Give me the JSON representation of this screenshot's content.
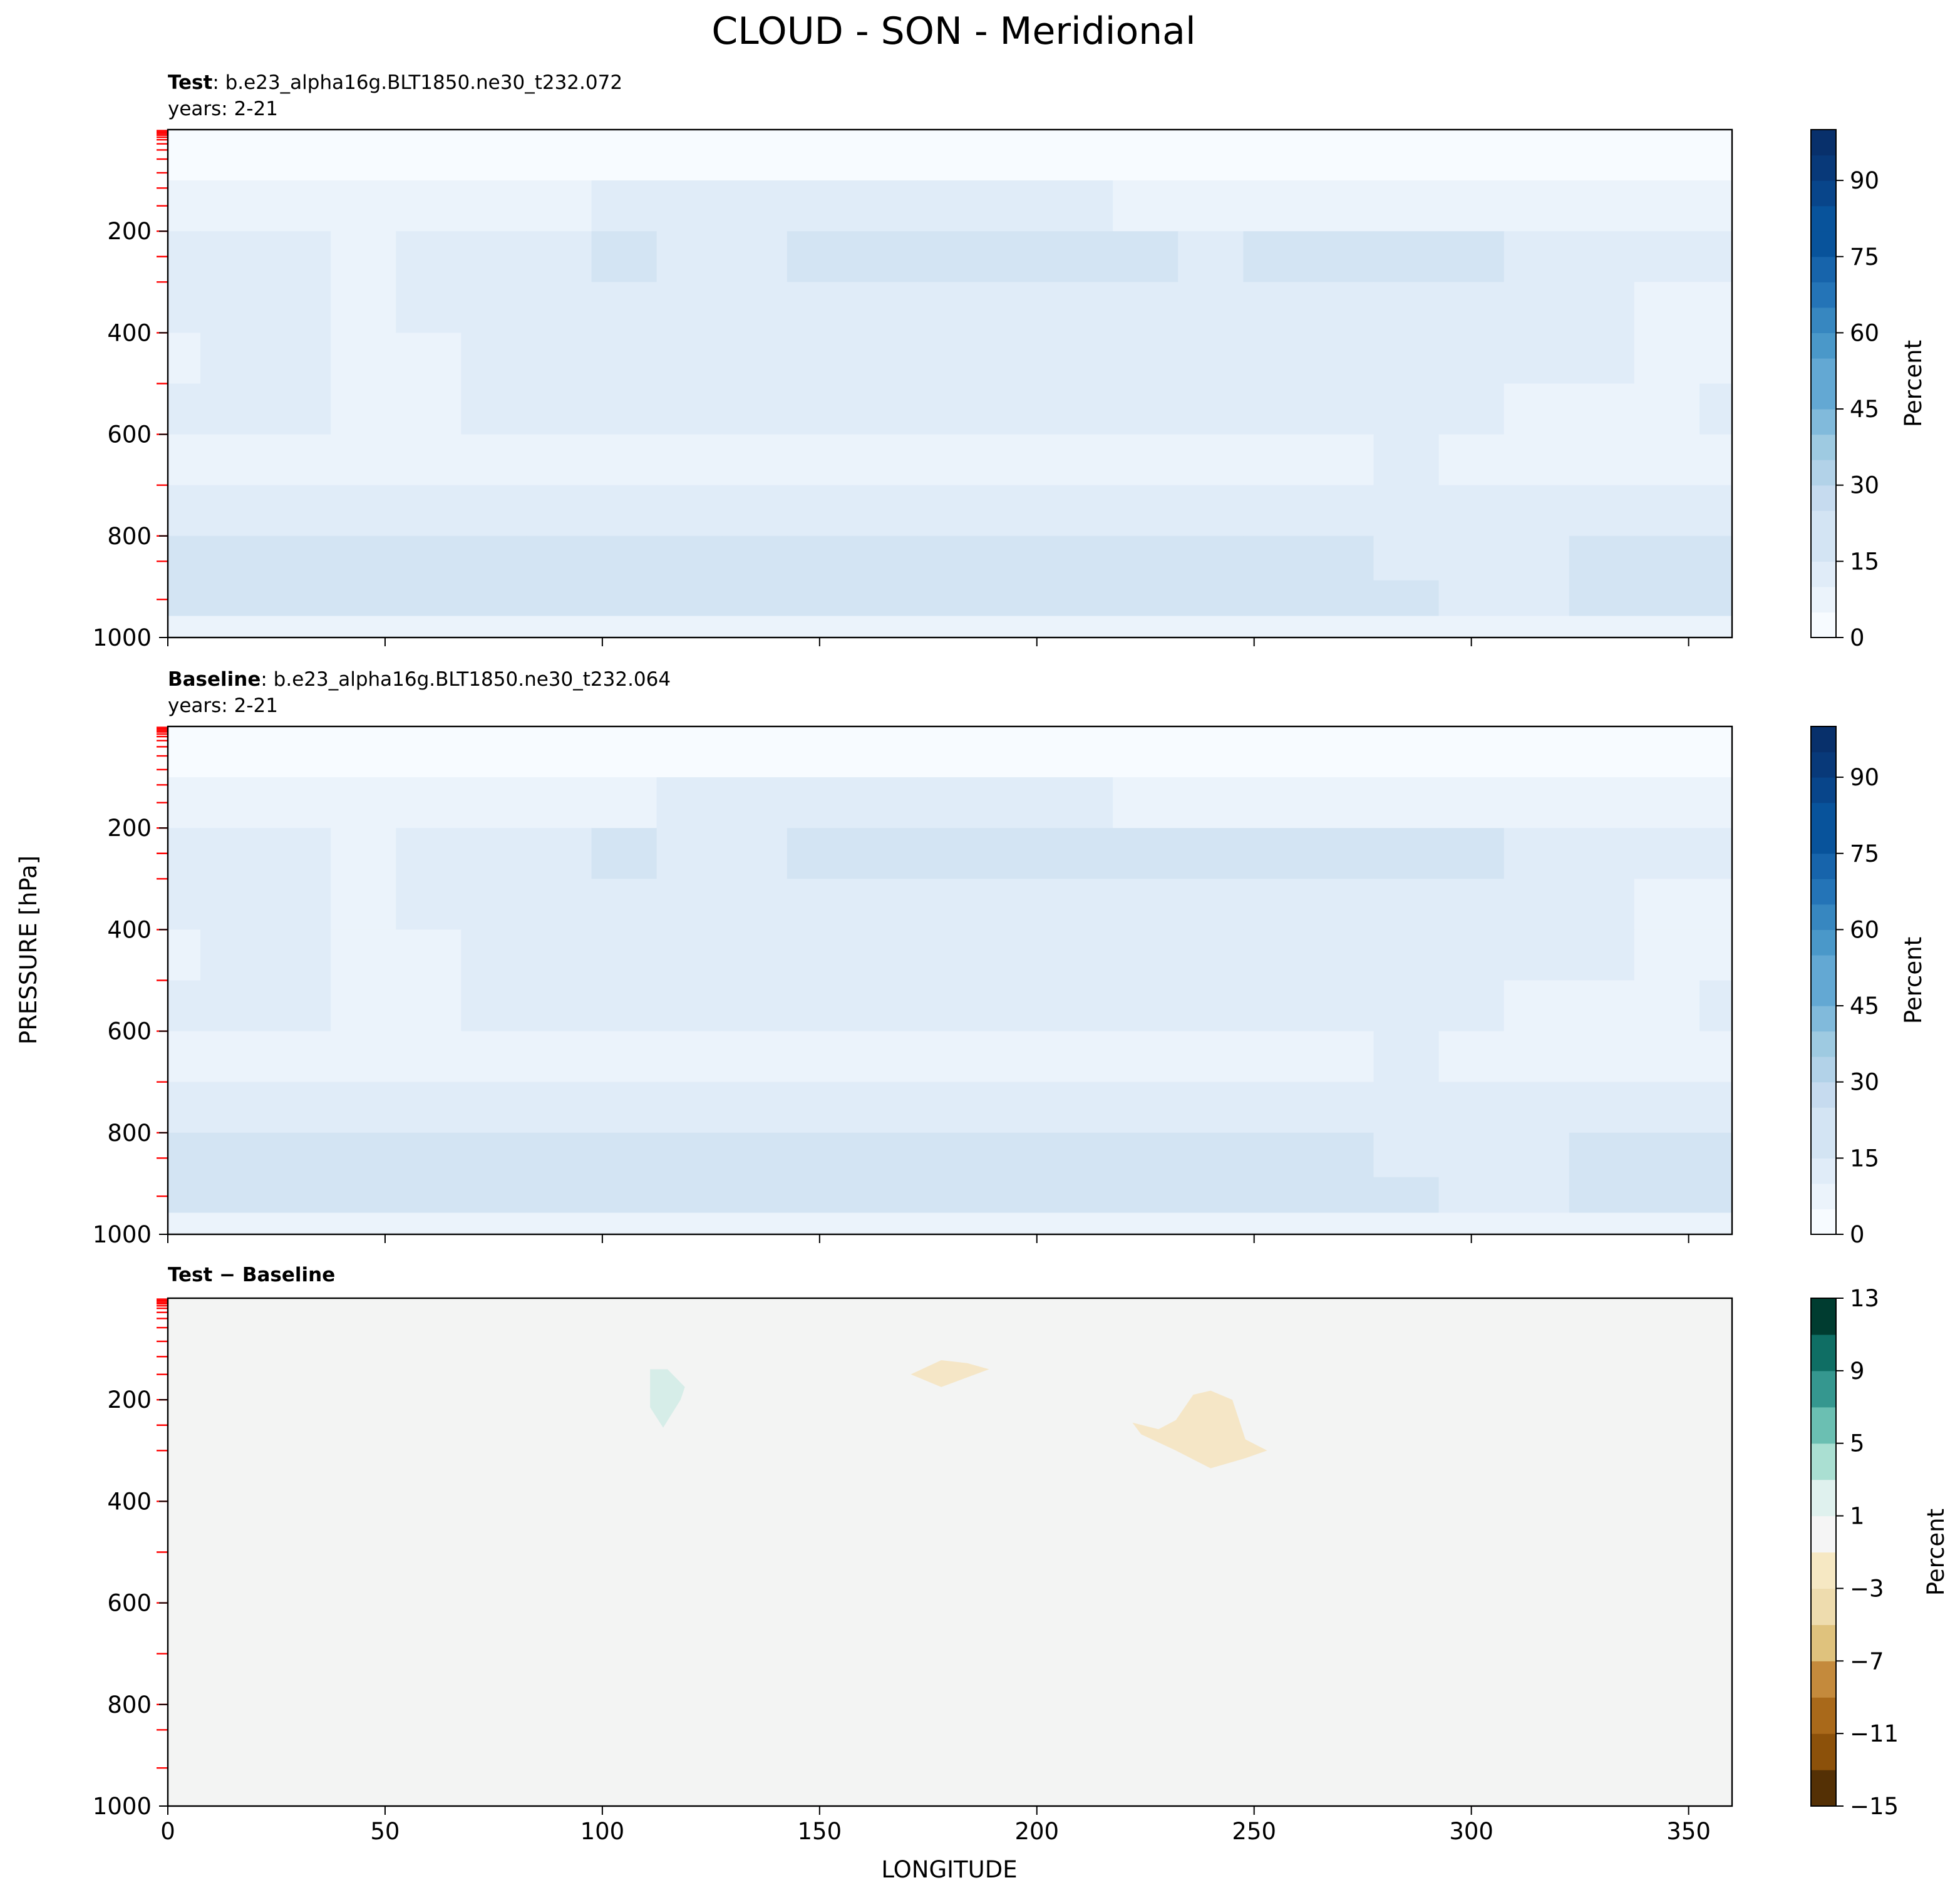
{
  "figure_title": "CLOUD - SON - Meridional",
  "chart_data": [
    {
      "type": "heatmap",
      "title_bold": "Test",
      "title_rest": ": b.e23_alpha16g.BLT1850.ne30_t232.072",
      "subtitle": "years: 2-21",
      "xlabel": "",
      "ylabel": "",
      "xlim": [
        0,
        360
      ],
      "ylim": [
        1000,
        0
      ],
      "xticks": [
        0,
        50,
        100,
        150,
        200,
        250,
        300,
        350
      ],
      "yticks": [
        200,
        400,
        600,
        800,
        1000
      ],
      "colormap": "Blues",
      "colorbar": {
        "label": "Percent",
        "ticks": [
          0,
          15,
          30,
          45,
          60,
          75,
          90
        ],
        "range": [
          0,
          100
        ],
        "levels": 20,
        "colors": [
          "#f7fbff",
          "#ebf3fb",
          "#e0ecf8",
          "#d3e4f3",
          "#c6dbef",
          "#b2d2e8",
          "#9ecae1",
          "#81badb",
          "#63a8d3",
          "#4a98c9",
          "#3787c0",
          "#2474b7",
          "#1764ab",
          "#08539b",
          "#08458a",
          "#083979",
          "#08306b"
        ]
      },
      "field": {
        "pressure_levels": [
          50,
          150,
          250,
          350,
          450,
          550,
          650,
          750,
          850,
          925,
          990
        ],
        "longitudes": [
          0,
          15,
          30,
          45,
          60,
          75,
          90,
          105,
          120,
          135,
          150,
          165,
          180,
          195,
          210,
          225,
          240,
          255,
          270,
          285,
          300,
          315,
          330,
          345,
          360
        ],
        "values": [
          [
            2,
            2,
            2,
            2,
            2,
            2,
            2,
            2,
            2,
            2,
            2,
            2,
            2,
            2,
            2,
            2,
            2,
            2,
            2,
            2,
            2,
            2,
            2,
            2,
            2
          ],
          [
            6,
            8,
            8,
            6,
            7,
            8,
            9,
            10,
            10,
            10,
            10,
            10,
            10,
            10,
            10,
            9,
            9,
            9,
            9,
            9,
            8,
            8,
            8,
            7,
            6
          ],
          [
            10,
            14,
            13,
            8,
            11,
            12,
            14,
            16,
            12,
            12,
            17,
            17,
            17,
            16,
            16,
            15,
            14,
            17,
            16,
            17,
            15,
            14,
            14,
            11,
            10
          ],
          [
            10,
            13,
            12,
            8,
            10,
            12,
            12,
            13,
            12,
            12,
            13,
            13,
            13,
            13,
            13,
            13,
            13,
            13,
            13,
            12,
            12,
            11,
            10,
            9,
            9
          ],
          [
            9,
            10,
            12,
            8,
            9,
            10,
            11,
            12,
            12,
            12,
            12,
            12,
            12,
            12,
            12,
            12,
            12,
            12,
            12,
            12,
            11,
            10,
            10,
            9,
            9
          ],
          [
            10,
            10,
            11,
            8,
            9,
            10,
            10,
            11,
            12,
            12,
            12,
            12,
            12,
            12,
            12,
            12,
            11,
            11,
            11,
            12,
            10,
            9,
            9,
            9,
            10
          ],
          [
            8,
            8,
            8,
            7,
            7,
            8,
            8,
            9,
            8,
            8,
            7,
            7,
            7,
            7,
            7,
            7,
            7,
            7,
            7,
            10,
            7,
            8,
            8,
            8,
            8
          ],
          [
            11,
            11,
            11,
            11,
            11,
            11,
            11,
            12,
            11,
            12,
            12,
            12,
            12,
            12,
            12,
            12,
            12,
            12,
            12,
            12,
            12,
            11,
            11,
            11,
            11
          ],
          [
            16,
            15,
            16,
            16,
            15,
            16,
            16,
            18,
            15,
            15,
            16,
            16,
            17,
            18,
            18,
            17,
            16,
            16,
            15,
            14,
            13,
            14,
            15,
            16,
            16
          ],
          [
            18,
            16,
            16,
            16,
            16,
            16,
            16,
            18,
            15,
            15,
            16,
            16,
            18,
            19,
            19,
            18,
            17,
            17,
            18,
            15,
            14,
            14,
            15,
            16,
            18
          ],
          [
            5,
            5,
            5,
            5,
            5,
            5,
            5,
            5,
            5,
            5,
            5,
            5,
            5,
            5,
            5,
            5,
            5,
            5,
            5,
            5,
            5,
            5,
            5,
            5,
            5
          ]
        ]
      }
    },
    {
      "type": "heatmap",
      "title_bold": "Baseline",
      "title_rest": ": b.e23_alpha16g.BLT1850.ne30_t232.064",
      "subtitle": "years: 2-21",
      "xlabel": "",
      "ylabel": "PRESSURE [hPa]",
      "xlim": [
        0,
        360
      ],
      "ylim": [
        1000,
        0
      ],
      "xticks": [
        0,
        50,
        100,
        150,
        200,
        250,
        300,
        350
      ],
      "yticks": [
        200,
        400,
        600,
        800,
        1000
      ],
      "colormap": "Blues",
      "colorbar": {
        "label": "Percent",
        "ticks": [
          0,
          15,
          30,
          45,
          60,
          75,
          90
        ],
        "range": [
          0,
          100
        ],
        "levels": 20,
        "colors": [
          "#f7fbff",
          "#ebf3fb",
          "#e0ecf8",
          "#d3e4f3",
          "#c6dbef",
          "#b2d2e8",
          "#9ecae1",
          "#81badb",
          "#63a8d3",
          "#4a98c9",
          "#3787c0",
          "#2474b7",
          "#1764ab",
          "#08539b",
          "#08458a",
          "#083979",
          "#08306b"
        ]
      },
      "field": {
        "pressure_levels": [
          50,
          150,
          250,
          350,
          450,
          550,
          650,
          750,
          850,
          925,
          990
        ],
        "longitudes": [
          0,
          15,
          30,
          45,
          60,
          75,
          90,
          105,
          120,
          135,
          150,
          165,
          180,
          195,
          210,
          225,
          240,
          255,
          270,
          285,
          300,
          315,
          330,
          345,
          360
        ],
        "values": [
          [
            2,
            2,
            2,
            2,
            2,
            2,
            2,
            2,
            2,
            2,
            2,
            2,
            2,
            2,
            2,
            2,
            2,
            2,
            2,
            2,
            2,
            2,
            2,
            2,
            2
          ],
          [
            6,
            8,
            8,
            6,
            7,
            8,
            9,
            9,
            10,
            10,
            10,
            10,
            10,
            10,
            10,
            9,
            9,
            9,
            9,
            9,
            8,
            8,
            8,
            7,
            6
          ],
          [
            10,
            14,
            13,
            8,
            11,
            12,
            14,
            16,
            12,
            12,
            16,
            16,
            16,
            16,
            16,
            15,
            15,
            16,
            16,
            17,
            15,
            14,
            14,
            11,
            10
          ],
          [
            10,
            13,
            12,
            8,
            10,
            12,
            12,
            13,
            12,
            12,
            13,
            13,
            13,
            13,
            13,
            13,
            13,
            13,
            13,
            12,
            12,
            11,
            10,
            9,
            9
          ],
          [
            9,
            10,
            12,
            8,
            9,
            10,
            11,
            12,
            12,
            12,
            12,
            12,
            12,
            12,
            12,
            12,
            12,
            12,
            12,
            12,
            11,
            10,
            10,
            9,
            9
          ],
          [
            10,
            10,
            11,
            8,
            9,
            10,
            10,
            11,
            12,
            12,
            12,
            12,
            12,
            12,
            12,
            12,
            11,
            11,
            11,
            12,
            10,
            9,
            9,
            9,
            10
          ],
          [
            8,
            8,
            8,
            7,
            7,
            8,
            8,
            9,
            8,
            8,
            7,
            7,
            7,
            7,
            7,
            7,
            7,
            7,
            7,
            10,
            7,
            8,
            8,
            8,
            8
          ],
          [
            11,
            11,
            11,
            11,
            11,
            11,
            11,
            12,
            11,
            12,
            12,
            12,
            12,
            12,
            12,
            12,
            12,
            12,
            12,
            12,
            12,
            11,
            11,
            11,
            11
          ],
          [
            16,
            15,
            16,
            16,
            15,
            16,
            16,
            18,
            15,
            15,
            16,
            16,
            17,
            18,
            18,
            17,
            16,
            16,
            15,
            14,
            13,
            14,
            15,
            16,
            16
          ],
          [
            18,
            16,
            16,
            16,
            16,
            16,
            16,
            18,
            15,
            15,
            16,
            16,
            18,
            19,
            19,
            18,
            17,
            17,
            18,
            15,
            14,
            14,
            15,
            16,
            18
          ],
          [
            5,
            5,
            5,
            5,
            5,
            5,
            5,
            5,
            5,
            5,
            5,
            5,
            5,
            5,
            5,
            5,
            5,
            5,
            5,
            5,
            5,
            5,
            5,
            5,
            5
          ]
        ]
      }
    },
    {
      "type": "heatmap",
      "title_bold": "Test − Baseline",
      "title_rest": "",
      "subtitle": "",
      "xlabel": "LONGITUDE",
      "ylabel": "",
      "xlim": [
        0,
        360
      ],
      "ylim": [
        1000,
        0
      ],
      "xticks": [
        0,
        50,
        100,
        150,
        200,
        250,
        300,
        350
      ],
      "yticks": [
        200,
        400,
        600,
        800,
        1000
      ],
      "colormap": "BrBG",
      "colorbar": {
        "label": "Percent",
        "ticks": [
          -15,
          -11,
          -7,
          -3,
          1,
          5,
          9,
          13
        ],
        "levels_bounds": [
          -15,
          -13,
          -11,
          -9,
          -7,
          -5,
          -3,
          -1,
          1,
          3,
          5,
          7,
          9,
          11,
          13
        ],
        "colors": [
          "#543005",
          "#8c510a",
          "#a9691a",
          "#c48a3c",
          "#dfc27d",
          "#eedcae",
          "#f6e8c3",
          "#f5f5f5",
          "#dff1ee",
          "#aadfd2",
          "#6bbfb2",
          "#35978f",
          "#0f6e64",
          "#003c30"
        ]
      },
      "background_value": 0,
      "background_color": "#f3f4f3",
      "anomalies": [
        {
          "label": "positive",
          "value": 2,
          "color": "#d6ede8",
          "outline": [
            [
              111,
              140
            ],
            [
              115,
              140
            ],
            [
              119,
              175
            ],
            [
              118,
              200
            ],
            [
              114,
              255
            ],
            [
              111,
              215
            ],
            [
              111,
              140
            ]
          ]
        },
        {
          "label": "negative-small",
          "value": -2,
          "color": "#f5e6c6",
          "outline": [
            [
              171,
              150
            ],
            [
              178,
              122
            ],
            [
              184,
              128
            ],
            [
              189,
              140
            ],
            [
              178,
              175
            ],
            [
              171,
              150
            ]
          ]
        },
        {
          "label": "negative-large",
          "value": -2,
          "color": "#f5e6c6",
          "outline": [
            [
              222,
              245
            ],
            [
              228,
              258
            ],
            [
              232,
              240
            ],
            [
              236,
              190
            ],
            [
              240,
              182
            ],
            [
              245,
              200
            ],
            [
              248,
              278
            ],
            [
              253,
              300
            ],
            [
              248,
              315
            ],
            [
              240,
              335
            ],
            [
              232,
              300
            ],
            [
              224,
              268
            ],
            [
              222,
              245
            ]
          ]
        }
      ]
    }
  ]
}
